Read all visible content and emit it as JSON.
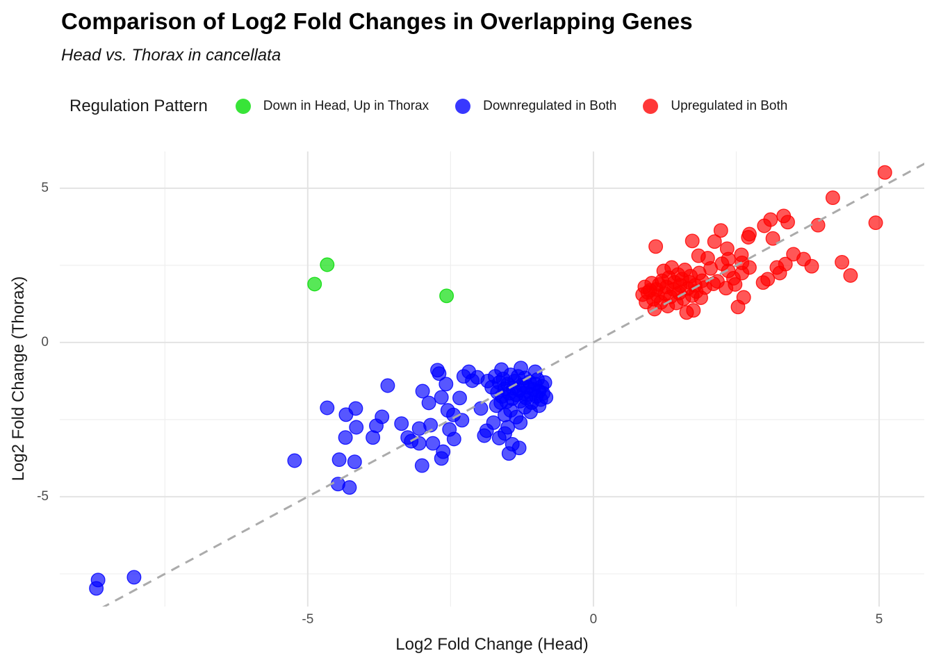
{
  "header": {
    "title": "Comparison of Log2 Fold Changes in Overlapping Genes",
    "subtitle": "Head vs. Thorax in cancellata"
  },
  "chart_data": {
    "type": "scatter",
    "title": "Comparison of Log2 Fold Changes in Overlapping Genes",
    "subtitle": "Head vs. Thorax in cancellata",
    "xlabel": "Log2 Fold Change (Head)",
    "ylabel": "Log2 Fold Change (Thorax)",
    "legend_title": "Regulation Pattern",
    "legend_position": "top",
    "xlim": [
      -9.34,
      5.79
    ],
    "ylim": [
      -8.56,
      6.19
    ],
    "x_ticks": [
      {
        "value": -5,
        "label": "-5"
      },
      {
        "value": 0,
        "label": "0"
      },
      {
        "value": 5,
        "label": "5"
      }
    ],
    "y_ticks": [
      {
        "value": 5,
        "label": "5"
      },
      {
        "value": 0,
        "label": "0"
      },
      {
        "value": -5,
        "label": "-5"
      }
    ],
    "grid": {
      "major_x": [
        -5,
        0,
        5
      ],
      "minor_x": [
        -7.5,
        -2.5,
        2.5
      ],
      "major_y": [
        -5,
        0,
        5
      ],
      "minor_y": [
        -7.5,
        -2.5,
        2.5
      ],
      "major_color": "#e3e3e3",
      "minor_color": "#efefef"
    },
    "reference_line": {
      "type": "identity",
      "slope": 1,
      "intercept": 0,
      "style": "dashed",
      "color": "#ababab"
    },
    "point_radius": 9.8,
    "point_fill_opacity": 0.66,
    "point_stroke_opacity": 0.85,
    "series": [
      {
        "name": "Downregulated in Both",
        "color": "#0000ff",
        "points": [
          [
            -8.7,
            -7.97
          ],
          [
            -8.67,
            -7.7
          ],
          [
            -8.04,
            -7.61
          ],
          [
            -5.23,
            -3.83
          ],
          [
            -4.66,
            -2.12
          ],
          [
            -4.47,
            -4.59
          ],
          [
            -4.45,
            -3.8
          ],
          [
            -4.34,
            -3.08
          ],
          [
            -4.33,
            -2.34
          ],
          [
            -4.27,
            -4.7
          ],
          [
            -4.18,
            -3.87
          ],
          [
            -4.16,
            -2.14
          ],
          [
            -4.15,
            -2.75
          ],
          [
            -3.86,
            -3.08
          ],
          [
            -3.8,
            -2.7
          ],
          [
            -3.7,
            -2.41
          ],
          [
            -3.6,
            -1.4
          ],
          [
            -3.36,
            -2.63
          ],
          [
            -3.25,
            -3.08
          ],
          [
            -3.19,
            -3.2
          ],
          [
            -3.05,
            -3.27
          ],
          [
            -3.05,
            -2.79
          ],
          [
            -3.0,
            -3.99
          ],
          [
            -2.99,
            -1.58
          ],
          [
            -2.88,
            -1.96
          ],
          [
            -2.85,
            -2.68
          ],
          [
            -2.81,
            -3.27
          ],
          [
            -2.73,
            -0.9
          ],
          [
            -2.7,
            -1.01
          ],
          [
            -2.66,
            -1.78
          ],
          [
            -2.66,
            -3.76
          ],
          [
            -2.63,
            -3.54
          ],
          [
            -2.58,
            -1.35
          ],
          [
            -2.55,
            -2.2
          ],
          [
            -2.52,
            -2.82
          ],
          [
            -2.45,
            -2.35
          ],
          [
            -2.44,
            -3.13
          ],
          [
            -2.34,
            -1.8
          ],
          [
            -2.3,
            -2.52
          ],
          [
            -2.27,
            -1.1
          ],
          [
            -2.18,
            -0.95
          ],
          [
            -2.12,
            -1.24
          ],
          [
            -2.03,
            -1.13
          ],
          [
            -1.97,
            -2.14
          ],
          [
            -1.91,
            -3.02
          ],
          [
            -1.87,
            -2.86
          ],
          [
            -1.85,
            -1.25
          ],
          [
            -1.78,
            -1.45
          ],
          [
            -1.75,
            -2.6
          ],
          [
            -1.72,
            -1.1
          ],
          [
            -1.7,
            -2.05
          ],
          [
            -1.68,
            -1.62
          ],
          [
            -1.65,
            -3.1
          ],
          [
            -1.65,
            -1.3
          ],
          [
            -1.62,
            -1.95
          ],
          [
            -1.61,
            -0.88
          ],
          [
            -1.6,
            -1.75
          ],
          [
            -1.58,
            -1.18
          ],
          [
            -1.55,
            -2.95
          ],
          [
            -1.55,
            -2.35
          ],
          [
            -1.55,
            -1.5
          ],
          [
            -1.52,
            -1.92
          ],
          [
            -1.5,
            -2.75
          ],
          [
            -1.5,
            -1.35
          ],
          [
            -1.48,
            -3.6
          ],
          [
            -1.48,
            -1.65
          ],
          [
            -1.45,
            -2.2
          ],
          [
            -1.45,
            -1.05
          ],
          [
            -1.42,
            -3.3
          ],
          [
            -1.42,
            -1.82
          ],
          [
            -1.4,
            -1.48
          ],
          [
            -1.38,
            -1.25
          ],
          [
            -1.35,
            -2.42
          ],
          [
            -1.35,
            -1.7
          ],
          [
            -1.32,
            -1.1
          ],
          [
            -1.3,
            -3.42
          ],
          [
            -1.3,
            -1.55
          ],
          [
            -1.28,
            -2.6
          ],
          [
            -1.28,
            -1.9
          ],
          [
            -1.27,
            -0.83
          ],
          [
            -1.25,
            -1.38
          ],
          [
            -1.22,
            -1.65
          ],
          [
            -1.2,
            -2.1
          ],
          [
            -1.2,
            -1.15
          ],
          [
            -1.18,
            -1.8
          ],
          [
            -1.15,
            -1.45
          ],
          [
            -1.12,
            -1.28
          ],
          [
            -1.1,
            -2.25
          ],
          [
            -1.1,
            -1.68
          ],
          [
            -1.08,
            -1.95
          ],
          [
            -1.05,
            -1.52
          ],
          [
            -1.02,
            -1.35
          ],
          [
            -1.02,
            -0.95
          ],
          [
            -1.0,
            -1.75
          ],
          [
            -0.98,
            -1.2
          ],
          [
            -0.95,
            -2.05
          ],
          [
            -0.95,
            -1.58
          ],
          [
            -0.92,
            -1.85
          ],
          [
            -0.9,
            -1.42
          ],
          [
            -0.88,
            -1.65
          ],
          [
            -0.85,
            -1.3
          ],
          [
            -0.83,
            -1.78
          ]
        ]
      },
      {
        "name": "Upregulated in Both",
        "color": "#ff0000",
        "points": [
          [
            1.09,
            3.11
          ],
          [
            1.73,
            3.29
          ],
          [
            2.12,
            3.27
          ],
          [
            2.23,
            3.63
          ],
          [
            2.34,
            3.04
          ],
          [
            2.59,
            2.84
          ],
          [
            2.71,
            3.41
          ],
          [
            2.73,
            3.51
          ],
          [
            2.99,
            3.78
          ],
          [
            3.1,
            3.98
          ],
          [
            3.33,
            4.1
          ],
          [
            3.4,
            3.9
          ],
          [
            3.14,
            3.37
          ],
          [
            3.93,
            3.8
          ],
          [
            4.19,
            4.69
          ],
          [
            4.94,
            3.88
          ],
          [
            5.1,
            5.51
          ],
          [
            3.36,
            2.54
          ],
          [
            3.5,
            2.86
          ],
          [
            3.68,
            2.7
          ],
          [
            3.82,
            2.47
          ],
          [
            4.35,
            2.6
          ],
          [
            4.5,
            2.17
          ],
          [
            2.36,
            2.7
          ],
          [
            2.6,
            2.58
          ],
          [
            2.73,
            2.43
          ],
          [
            3.21,
            2.43
          ],
          [
            3.26,
            2.25
          ],
          [
            3.05,
            2.05
          ],
          [
            2.97,
            1.94
          ],
          [
            2.63,
            1.46
          ],
          [
            2.53,
            1.15
          ],
          [
            0.86,
            1.55
          ],
          [
            0.9,
            1.8
          ],
          [
            0.92,
            1.31
          ],
          [
            0.95,
            1.62
          ],
          [
            0.99,
            1.69
          ],
          [
            1.02,
            1.92
          ],
          [
            1.05,
            1.4
          ],
          [
            1.07,
            1.08
          ],
          [
            1.1,
            1.72
          ],
          [
            1.12,
            1.52
          ],
          [
            1.15,
            1.88
          ],
          [
            1.18,
            1.3
          ],
          [
            1.2,
            2.0
          ],
          [
            1.23,
            2.32
          ],
          [
            1.25,
            1.58
          ],
          [
            1.28,
            1.8
          ],
          [
            1.3,
            1.18
          ],
          [
            1.32,
            2.1
          ],
          [
            1.35,
            1.48
          ],
          [
            1.37,
            2.43
          ],
          [
            1.4,
            1.72
          ],
          [
            1.42,
            1.95
          ],
          [
            1.45,
            1.28
          ],
          [
            1.48,
            2.2
          ],
          [
            1.5,
            1.6
          ],
          [
            1.52,
            1.85
          ],
          [
            1.55,
            2.05
          ],
          [
            1.58,
            1.42
          ],
          [
            1.6,
            2.35
          ],
          [
            1.63,
            0.97
          ],
          [
            1.65,
            1.75
          ],
          [
            1.68,
            1.95
          ],
          [
            1.7,
            2.15
          ],
          [
            1.73,
            1.52
          ],
          [
            1.75,
            1.04
          ],
          [
            1.78,
            1.85
          ],
          [
            1.8,
            1.65
          ],
          [
            1.84,
            2.81
          ],
          [
            1.85,
            2.25
          ],
          [
            1.88,
            1.45
          ],
          [
            1.9,
            2.0
          ],
          [
            1.95,
            1.78
          ],
          [
            2.0,
            2.73
          ],
          [
            2.05,
            2.4
          ],
          [
            2.1,
            1.9
          ],
          [
            2.17,
            1.98
          ],
          [
            2.25,
            2.55
          ],
          [
            2.32,
            1.76
          ],
          [
            2.36,
            2.32
          ],
          [
            2.45,
            2.08
          ],
          [
            2.48,
            1.88
          ],
          [
            2.6,
            2.25
          ]
        ]
      },
      {
        "name": "Down in Head, Up in Thorax",
        "color": "#00dc00",
        "points": [
          [
            -4.88,
            1.89
          ],
          [
            -4.66,
            2.52
          ],
          [
            -2.57,
            1.51
          ]
        ]
      }
    ],
    "legend_order": [
      "Down in Head, Up in Thorax",
      "Downregulated in Both",
      "Upregulated in Both"
    ]
  }
}
